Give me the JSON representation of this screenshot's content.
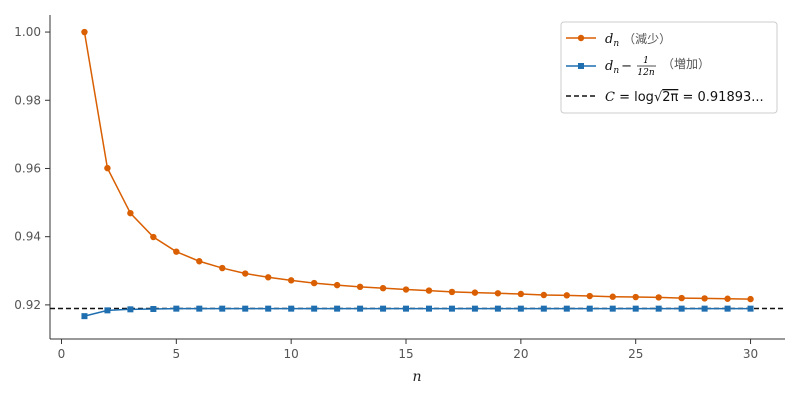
{
  "chart_data": {
    "type": "line",
    "xlabel": "n",
    "ylabel": "",
    "xlim": [
      -0.5,
      31.5
    ],
    "ylim": [
      0.91,
      1.005
    ],
    "xticks": [
      0,
      5,
      10,
      15,
      20,
      25,
      30
    ],
    "yticks": [
      0.92,
      0.94,
      0.96,
      0.98,
      1.0
    ],
    "ytick_labels": [
      "0.92",
      "0.94",
      "0.96",
      "0.98",
      "1.00"
    ],
    "grid": false,
    "legend_position": "top-right",
    "x": [
      1,
      2,
      3,
      4,
      5,
      6,
      7,
      8,
      9,
      10,
      11,
      12,
      13,
      14,
      15,
      16,
      17,
      18,
      19,
      20,
      21,
      22,
      23,
      24,
      25,
      26,
      27,
      28,
      29,
      30
    ],
    "series": [
      {
        "name": "d_n (減少)",
        "label_math": "d",
        "label_sub": "n",
        "label_note": "（減少）",
        "color": "#d95f02",
        "marker": "circle",
        "values": [
          1.0,
          0.9601,
          0.9469,
          0.9399,
          0.9356,
          0.9328,
          0.9308,
          0.9292,
          0.9281,
          0.9272,
          0.9264,
          0.9258,
          0.9253,
          0.9249,
          0.9245,
          0.9242,
          0.9238,
          0.9236,
          0.9234,
          0.9232,
          0.9229,
          0.9228,
          0.9226,
          0.9224,
          0.9223,
          0.9222,
          0.922,
          0.9219,
          0.9218,
          0.9217
        ]
      },
      {
        "name": "d_n − 1/(12n) (増加)",
        "label_math": "d",
        "label_sub": "n",
        "label_minus": "−",
        "label_frac_num": "1",
        "label_frac_den": "12n",
        "label_note": "（増加）",
        "color": "#1f6fb0",
        "marker": "square",
        "values": [
          0.9167,
          0.9184,
          0.9187,
          0.9188,
          0.9189,
          0.9189,
          0.9189,
          0.9189,
          0.9189,
          0.9189,
          0.9189,
          0.9189,
          0.9189,
          0.9189,
          0.9189,
          0.9189,
          0.9189,
          0.9189,
          0.9189,
          0.9189,
          0.9189,
          0.9189,
          0.9189,
          0.9189,
          0.9189,
          0.9189,
          0.9189,
          0.9189,
          0.9189,
          0.9189
        ]
      }
    ],
    "reference_line": {
      "name": "C = log√2π = 0.91893...",
      "label_c": "C",
      "label_eq1": " = log",
      "label_sqrt": "√",
      "label_radicand": "2π",
      "label_eq2": " = 0.91893...",
      "value": 0.91894,
      "style": "dashed",
      "color": "#111111"
    }
  }
}
